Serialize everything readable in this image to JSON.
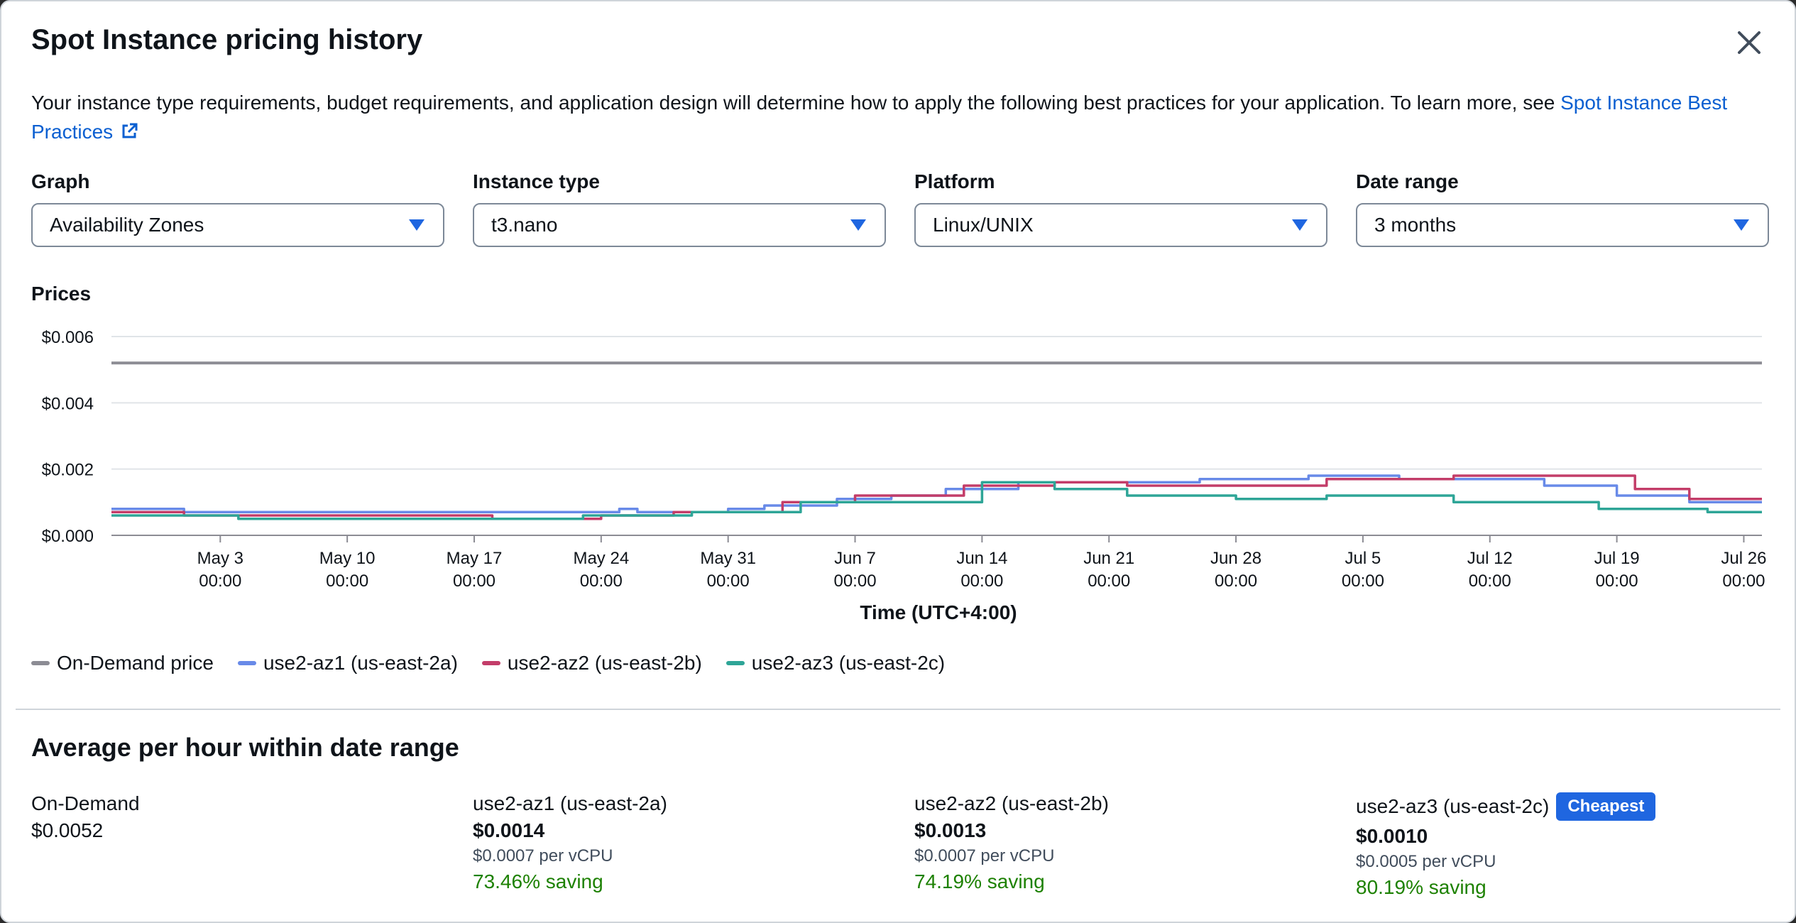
{
  "modal": {
    "title": "Spot Instance pricing history",
    "description": "Your instance type requirements, budget requirements, and application design will determine how to apply the following best practices for your application. To learn more, see",
    "link_text": "Spot Instance Best Practices"
  },
  "filters": {
    "graph": {
      "label": "Graph",
      "value": "Availability Zones"
    },
    "instance_type": {
      "label": "Instance type",
      "value": "t3.nano"
    },
    "platform": {
      "label": "Platform",
      "value": "Linux/UNIX"
    },
    "date_range": {
      "label": "Date range",
      "value": "3 months"
    }
  },
  "prices_label": "Prices",
  "chart_data": {
    "type": "line",
    "xlabel": "Time (UTC+4:00)",
    "ylabel": "",
    "ylim": [
      0,
      0.006
    ],
    "yticks": [
      "$0.000",
      "$0.002",
      "$0.004",
      "$0.006"
    ],
    "xticks": [
      {
        "label": "May 3",
        "time": "00:00"
      },
      {
        "label": "May 10",
        "time": "00:00"
      },
      {
        "label": "May 17",
        "time": "00:00"
      },
      {
        "label": "May 24",
        "time": "00:00"
      },
      {
        "label": "May 31",
        "time": "00:00"
      },
      {
        "label": "Jun 7",
        "time": "00:00"
      },
      {
        "label": "Jun 14",
        "time": "00:00"
      },
      {
        "label": "Jun 21",
        "time": "00:00"
      },
      {
        "label": "Jun 28",
        "time": "00:00"
      },
      {
        "label": "Jul 5",
        "time": "00:00"
      },
      {
        "label": "Jul 12",
        "time": "00:00"
      },
      {
        "label": "Jul 19",
        "time": "00:00"
      },
      {
        "label": "Jul 26",
        "time": "00:00"
      }
    ],
    "grid": true,
    "legend_position": "bottom-left",
    "series": [
      {
        "name": "On-Demand price",
        "color": "#8c8c94",
        "x": [
          "Apr 27",
          "Jul 27"
        ],
        "values": [
          0.0052,
          0.0052
        ]
      },
      {
        "name": "use2-az1 (us-east-2a)",
        "color": "#688ae8",
        "x": [
          "Apr 27",
          "May 1",
          "May 1",
          "May 25",
          "May 25",
          "May 26",
          "May 26",
          "May 31",
          "May 31",
          "Jun 2",
          "Jun 2",
          "Jun 6",
          "Jun 6",
          "Jun 9",
          "Jun 9",
          "Jun 12",
          "Jun 12",
          "Jun 14",
          "Jun 14",
          "Jun 16",
          "Jun 16",
          "Jun 26",
          "Jun 26",
          "Jul 2",
          "Jul 2",
          "Jul 7",
          "Jul 7",
          "Jul 15",
          "Jul 15",
          "Jul 19",
          "Jul 19",
          "Jul 23",
          "Jul 23",
          "Jul 27"
        ],
        "values": [
          0.0008,
          0.0008,
          0.0007,
          0.0007,
          0.0008,
          0.0008,
          0.0007,
          0.0007,
          0.0008,
          0.0008,
          0.0009,
          0.0009,
          0.0011,
          0.0011,
          0.0012,
          0.0012,
          0.0014,
          0.0014,
          0.0014,
          0.0014,
          0.0016,
          0.0016,
          0.0017,
          0.0017,
          0.0018,
          0.0018,
          0.0017,
          0.0017,
          0.0015,
          0.0015,
          0.0012,
          0.0012,
          0.001,
          0.001
        ]
      },
      {
        "name": "use2-az2 (us-east-2b)",
        "color": "#c33d69",
        "x": [
          "Apr 27",
          "May 1",
          "May 1",
          "May 7",
          "May 7",
          "May 18",
          "May 18",
          "May 24",
          "May 24",
          "May 28",
          "May 28",
          "Jun 3",
          "Jun 3",
          "Jun 7",
          "Jun 7",
          "Jun 13",
          "Jun 13",
          "Jun 18",
          "Jun 18",
          "Jun 22",
          "Jun 22",
          "Jul 3",
          "Jul 3",
          "Jul 10",
          "Jul 10",
          "Jul 20",
          "Jul 20",
          "Jul 23",
          "Jul 23",
          "Jul 27"
        ],
        "values": [
          0.0007,
          0.0007,
          0.0006,
          0.0006,
          0.0006,
          0.0006,
          0.0005,
          0.0005,
          0.0006,
          0.0006,
          0.0007,
          0.0007,
          0.001,
          0.001,
          0.0012,
          0.0012,
          0.0015,
          0.0015,
          0.0016,
          0.0016,
          0.0015,
          0.0015,
          0.0017,
          0.0017,
          0.0018,
          0.0018,
          0.0014,
          0.0014,
          0.0011,
          0.0011
        ]
      },
      {
        "name": "use2-az3 (us-east-2c)",
        "color": "#2ea597",
        "x": [
          "Apr 27",
          "May 4",
          "May 4",
          "May 23",
          "May 23",
          "May 29",
          "May 29",
          "Jun 4",
          "Jun 4",
          "Jun 14",
          "Jun 14",
          "Jun 18",
          "Jun 18",
          "Jun 22",
          "Jun 22",
          "Jun 28",
          "Jun 28",
          "Jul 3",
          "Jul 3",
          "Jul 10",
          "Jul 10",
          "Jul 18",
          "Jul 18",
          "Jul 24",
          "Jul 24",
          "Jul 27"
        ],
        "values": [
          0.0006,
          0.0006,
          0.0005,
          0.0005,
          0.0006,
          0.0006,
          0.0007,
          0.0007,
          0.001,
          0.001,
          0.0016,
          0.0016,
          0.0014,
          0.0014,
          0.0012,
          0.0012,
          0.0011,
          0.0011,
          0.0012,
          0.0012,
          0.001,
          0.001,
          0.0008,
          0.0008,
          0.0007,
          0.0007
        ]
      }
    ]
  },
  "average": {
    "title": "Average per hour within date range",
    "on_demand": {
      "name": "On-Demand",
      "price": "$0.0052"
    },
    "zones": [
      {
        "name": "use2-az1 (us-east-2a)",
        "price": "$0.0014",
        "vcpu": "$0.0007 per vCPU",
        "saving": "73.46% saving",
        "badge": ""
      },
      {
        "name": "use2-az2 (us-east-2b)",
        "price": "$0.0013",
        "vcpu": "$0.0007 per vCPU",
        "saving": "74.19% saving",
        "badge": ""
      },
      {
        "name": "use2-az3 (us-east-2c)",
        "price": "$0.0010",
        "vcpu": "$0.0005 per vCPU",
        "saving": "80.19% saving",
        "badge": "Cheapest"
      }
    ]
  },
  "colors": {
    "accent": "#1f66e0",
    "saving": "#1d8102",
    "link": "#0b5fd1"
  }
}
